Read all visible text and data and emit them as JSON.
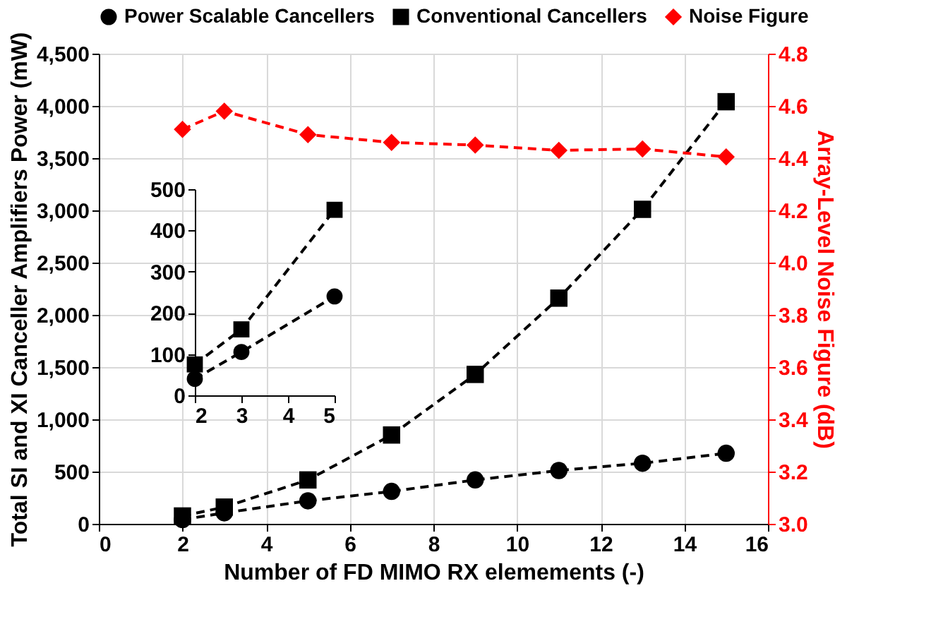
{
  "chart_data": [
    {
      "type": "line",
      "xlabel": "Number of FD MIMO RX elemements (-)",
      "ylabel": "Total SI and XI Canceller Amplifiers Power (mW)",
      "y2label": "Array-Level Noise Figure (dB)",
      "x": [
        2,
        3,
        5,
        7,
        9,
        11,
        13,
        15
      ],
      "series": [
        {
          "name": "Power Scalable Cancellers",
          "color": "#000000",
          "marker": "circle",
          "values": [
            40,
            105,
            220,
            310,
            420,
            510,
            580,
            675
          ]
        },
        {
          "name": "Conventional Cancellers",
          "color": "#000000",
          "marker": "square",
          "values": [
            75,
            160,
            420,
            850,
            1430,
            2160,
            3010,
            4040
          ]
        },
        {
          "name": "Noise Figure",
          "color": "#ff0000",
          "marker": "diamond",
          "axis": "y2",
          "values": [
            4.51,
            4.58,
            4.49,
            4.46,
            4.45,
            4.43,
            4.435,
            4.405
          ]
        }
      ],
      "xlim": [
        0,
        16
      ],
      "xticks": [
        0,
        2,
        4,
        6,
        8,
        10,
        12,
        14,
        16
      ],
      "ylim": [
        0,
        4500
      ],
      "yticks": [
        0,
        {
          "value": 500,
          "label": "500"
        },
        {
          "value": 1000,
          "label": "1,000"
        },
        {
          "value": 1500,
          "label": "1,500"
        },
        {
          "value": 2000,
          "label": "2,000"
        },
        {
          "value": 2500,
          "label": "2,500"
        },
        {
          "value": 3000,
          "label": "3,000"
        },
        {
          "value": 3500,
          "label": "3,500"
        },
        {
          "value": 4000,
          "label": "4,000"
        },
        {
          "value": 4500,
          "label": "4,500"
        }
      ],
      "y2lim": [
        3.0,
        4.8
      ],
      "y2ticks": [
        {
          "value": 3.0,
          "label": "3.0"
        },
        {
          "value": 3.2,
          "label": "3.2"
        },
        {
          "value": 3.4,
          "label": "3.4"
        },
        {
          "value": 3.6,
          "label": "3.6"
        },
        {
          "value": 3.8,
          "label": "3.8"
        },
        {
          "value": 4.0,
          "label": "4.0"
        },
        {
          "value": 4.2,
          "label": "4.2"
        },
        {
          "value": 4.4,
          "label": "4.4"
        },
        {
          "value": 4.6,
          "label": "4.6"
        },
        {
          "value": 4.8,
          "label": "4.8"
        }
      ],
      "grid": true,
      "legend": "top",
      "line_style": "dashed"
    },
    {
      "type": "line",
      "x": [
        2,
        3,
        5
      ],
      "series": [
        {
          "color": "#000000",
          "marker": "circle",
          "values": [
            40,
            105,
            240
          ]
        },
        {
          "color": "#000000",
          "marker": "square",
          "values": [
            75,
            160,
            450
          ]
        }
      ],
      "xlim": [
        2,
        5
      ],
      "xticks": [
        2,
        3,
        4,
        5
      ],
      "ylim": [
        0,
        500
      ],
      "yticks": [
        0,
        100,
        200,
        300,
        400,
        500
      ],
      "line_style": "dashed"
    }
  ]
}
